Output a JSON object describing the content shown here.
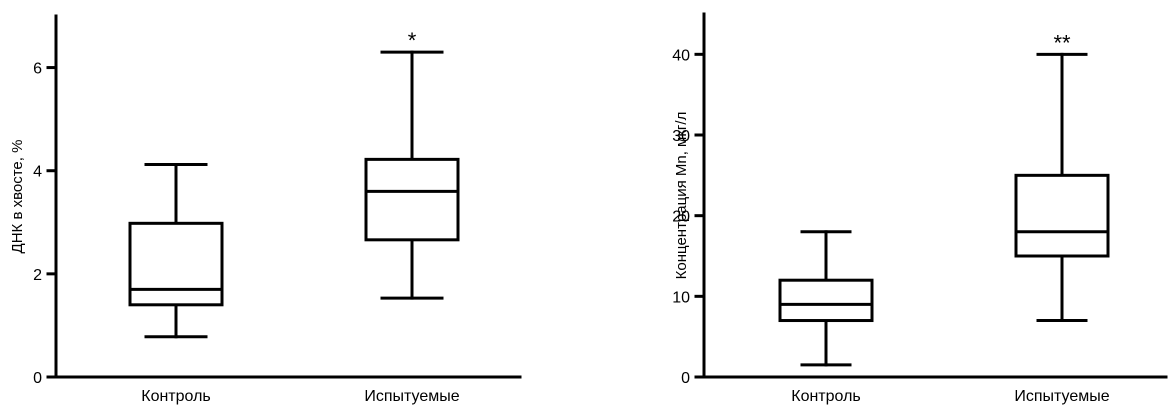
{
  "chart_data": [
    {
      "type": "box",
      "ylabel": "ДНК в хвосте, %",
      "xlabel": "",
      "ylim": [
        0,
        7
      ],
      "yticks": [
        0,
        2,
        4,
        6
      ],
      "categories": [
        "Контроль",
        "Испытуемые"
      ],
      "boxes": [
        {
          "category": "Контроль",
          "min": 0.78,
          "q1": 1.4,
          "median": 1.7,
          "q3": 2.98,
          "max": 4.12,
          "annotation": ""
        },
        {
          "category": "Испытуемые",
          "min": 1.53,
          "q1": 2.66,
          "median": 3.6,
          "q3": 4.22,
          "max": 6.3,
          "annotation": "*"
        }
      ],
      "grid": false
    },
    {
      "type": "box",
      "ylabel": "Концентрация Mn, мкг/л",
      "xlabel": "",
      "ylim": [
        0,
        45
      ],
      "yticks": [
        0,
        10,
        20,
        30,
        40
      ],
      "categories": [
        "Контроль",
        "Испытуемые"
      ],
      "boxes": [
        {
          "category": "Контроль",
          "min": 1.5,
          "q1": 7,
          "median": 9,
          "q3": 12,
          "max": 18,
          "annotation": ""
        },
        {
          "category": "Испытуемые",
          "min": 7,
          "q1": 15,
          "median": 18,
          "q3": 25,
          "max": 40,
          "annotation": "**"
        }
      ],
      "grid": false
    }
  ]
}
